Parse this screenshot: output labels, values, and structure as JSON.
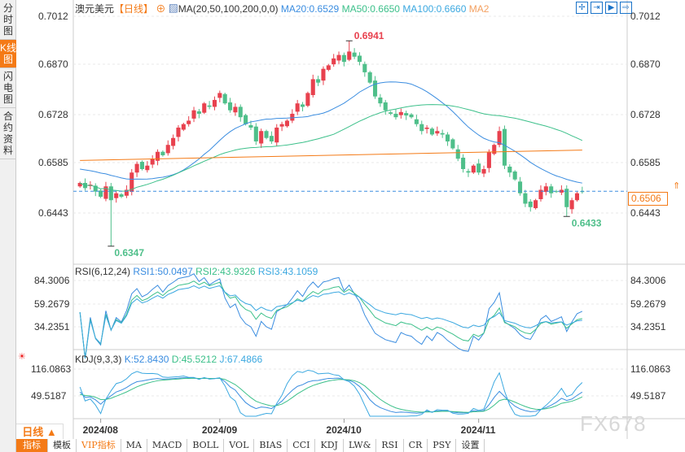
{
  "sidebar": {
    "tabs": [
      {
        "label": "分时图"
      },
      {
        "label": "K线图",
        "active": true
      },
      {
        "label": "闪电图"
      },
      {
        "label": "合约资料"
      }
    ]
  },
  "header": {
    "symbol": "澳元美元",
    "period": "【日线】",
    "ma_label": "MA(20,50,100,200,0,0)",
    "ma20": "MA20:0.6529",
    "ma50": "MA50:0.6650",
    "ma100": "MA100:0.6660",
    "ma2": "MA2"
  },
  "tools": [
    "crosshair-icon",
    "zoom-in-icon",
    "play-icon",
    "goto-end-icon"
  ],
  "price_axis": [
    "0.7012",
    "0.6870",
    "0.6728",
    "0.6585",
    "0.6443"
  ],
  "current_price": "0.6506",
  "annotations": {
    "high": "0.6941",
    "low": "0.6347",
    "recent_low": "0.6433"
  },
  "rsi": {
    "title": "RSI(6,12,24)",
    "rsi1": "RSI1:50.0497",
    "rsi2": "RSI2:43.9326",
    "rsi3": "RSI3:43.1059",
    "axis": [
      "84.3006",
      "59.2679",
      "34.2351"
    ]
  },
  "kdj": {
    "title": "KDJ(9,3,3)",
    "k": "K:52.8430",
    "d": "D:45.5212",
    "j": "J:67.4866",
    "axis": [
      "116.0863",
      "49.5187"
    ]
  },
  "period_selector": "日线 ▲",
  "dates": [
    {
      "label": "2024/08",
      "index": 4
    },
    {
      "label": "2024/09",
      "index": 27
    },
    {
      "label": "2024/10",
      "index": 51
    },
    {
      "label": "2024/11",
      "index": 77
    }
  ],
  "bottom_tabs": [
    {
      "label": "指标",
      "active": true
    },
    {
      "label": "模板"
    },
    {
      "label": "VIP指标",
      "vip": true
    },
    {
      "label": "MA"
    },
    {
      "label": "MACD"
    },
    {
      "label": "BOLL"
    },
    {
      "label": "VOL"
    },
    {
      "label": "BIAS"
    },
    {
      "label": "CCI"
    },
    {
      "label": "KDJ"
    },
    {
      "label": "LW&"
    },
    {
      "label": "RSI"
    },
    {
      "label": "CR"
    },
    {
      "label": "PSY"
    },
    {
      "label": "设置"
    }
  ],
  "watermark": "FX678",
  "colors": {
    "up": "#e8414e",
    "down": "#4fbf8a",
    "ma20": "#3b8de0",
    "ma50": "#3cc08a",
    "ma100": "#f47a16",
    "accent": "#f47a16"
  },
  "chart_data": {
    "type": "candlestick",
    "ylim": [
      0.634,
      0.703
    ],
    "closes": [
      0.653,
      0.6515,
      0.6525,
      0.6505,
      0.649,
      0.652,
      0.648,
      0.65,
      0.649,
      0.651,
      0.656,
      0.6585,
      0.657,
      0.658,
      0.66,
      0.662,
      0.661,
      0.664,
      0.666,
      0.669,
      0.67,
      0.671,
      0.674,
      0.673,
      0.676,
      0.675,
      0.677,
      0.679,
      0.676,
      0.674,
      0.675,
      0.672,
      0.67,
      0.669,
      0.665,
      0.668,
      0.666,
      0.665,
      0.669,
      0.67,
      0.671,
      0.673,
      0.676,
      0.675,
      0.679,
      0.683,
      0.682,
      0.686,
      0.687,
      0.689,
      0.69,
      0.688,
      0.691,
      0.6895,
      0.688,
      0.685,
      0.682,
      0.678,
      0.676,
      0.674,
      0.673,
      0.672,
      0.6735,
      0.6725,
      0.672,
      0.67,
      0.668,
      0.669,
      0.667,
      0.668,
      0.667,
      0.665,
      0.663,
      0.66,
      0.657,
      0.656,
      0.658,
      0.656,
      0.657,
      0.662,
      0.664,
      0.668,
      0.658,
      0.656,
      0.654,
      0.65,
      0.647,
      0.646,
      0.648,
      0.651,
      0.652,
      0.65,
      0.6505,
      0.651,
      0.646,
      0.648,
      0.65,
      0.6506
    ],
    "low_point": {
      "index": 6,
      "value": 0.6347
    },
    "high_point": {
      "index": 52,
      "value": 0.6941
    },
    "recent_low_point": {
      "index": 94,
      "value": 0.6433
    }
  }
}
